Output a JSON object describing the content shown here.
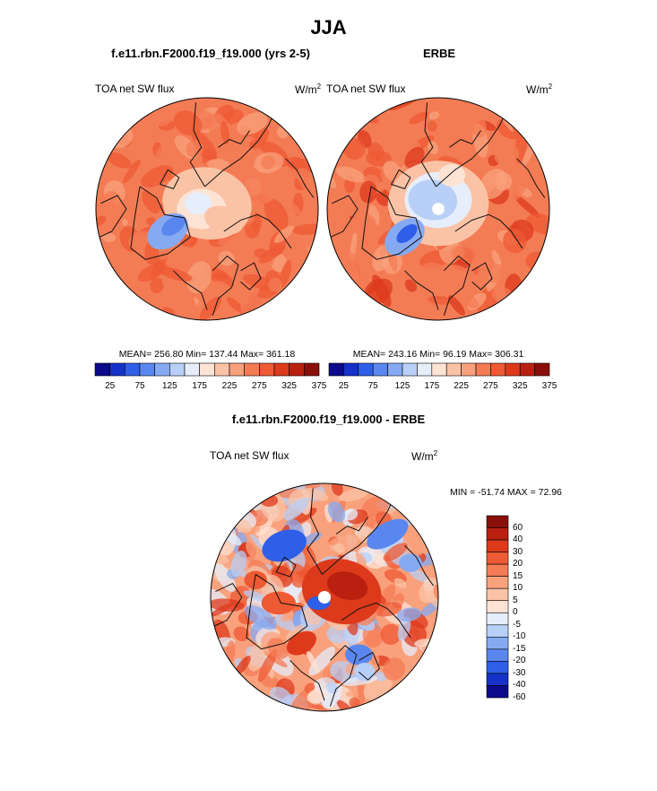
{
  "main_title": "JJA",
  "colors": {
    "seq": [
      "#0a0a8a",
      "#1531c8",
      "#2f5fe8",
      "#5a87ef",
      "#86aaf2",
      "#b8cff7",
      "#e6eefb",
      "#fde3d4",
      "#fbc3a6",
      "#f9a17c",
      "#f47c55",
      "#ee5a34",
      "#dd3a1c",
      "#b92010",
      "#8a0f0a"
    ],
    "diff": [
      "#0a0a8a",
      "#1531c8",
      "#2f5fe8",
      "#5a87ef",
      "#86aaf2",
      "#b8cff7",
      "#e6eefb",
      "#fde3d4",
      "#fbc3a6",
      "#f9a17c",
      "#f47c55",
      "#ee5a34",
      "#dd3a1c",
      "#b92010",
      "#8a0f0a"
    ]
  },
  "chart_data": [
    {
      "type": "heatmap",
      "projection": "north-polar-stereographic",
      "title": "f.e11.rbn.F2000.f19_f19.000 (yrs 2-5)",
      "variable": "TOA net SW flux",
      "units_base": "W/m",
      "units_exp": "2",
      "stats": {
        "text": "MEAN= 256.80  Min= 137.44  Max= 361.18",
        "mean": 256.8,
        "min": 137.44,
        "max": 361.18
      },
      "colorbar_ticks": [
        "25",
        "75",
        "125",
        "175",
        "225",
        "275",
        "325",
        "375"
      ],
      "levels": [
        25,
        50,
        75,
        100,
        125,
        150,
        175,
        200,
        225,
        250,
        275,
        300,
        325,
        350,
        375
      ]
    },
    {
      "type": "heatmap",
      "projection": "north-polar-stereographic",
      "title": "ERBE",
      "variable": "TOA net SW flux",
      "units_base": "W/m",
      "units_exp": "2",
      "stats": {
        "text": "MEAN= 243.16  Min=  96.19  Max= 306.31",
        "mean": 243.16,
        "min": 96.19,
        "max": 306.31
      },
      "colorbar_ticks": [
        "25",
        "75",
        "125",
        "175",
        "225",
        "275",
        "325",
        "375"
      ],
      "levels": [
        25,
        50,
        75,
        100,
        125,
        150,
        175,
        200,
        225,
        250,
        275,
        300,
        325,
        350,
        375
      ]
    },
    {
      "type": "heatmap",
      "projection": "north-polar-stereographic",
      "title": "f.e11.rbn.F2000.f19_f19.000 - ERBE",
      "variable": "TOA net SW flux",
      "units_base": "W/m",
      "units_exp": "2",
      "stats": {
        "text": "MIN = -51.74 MAX =  72.96",
        "min": -51.74,
        "max": 72.96
      },
      "colorbar_ticks": [
        "60",
        "40",
        "30",
        "20",
        "15",
        "10",
        "5",
        "0",
        "-5",
        "-10",
        "-15",
        "-20",
        "-30",
        "-40",
        "-60"
      ],
      "levels": [
        -60,
        -40,
        -30,
        -20,
        -15,
        -10,
        -5,
        0,
        5,
        10,
        15,
        20,
        30,
        40,
        60
      ]
    }
  ]
}
